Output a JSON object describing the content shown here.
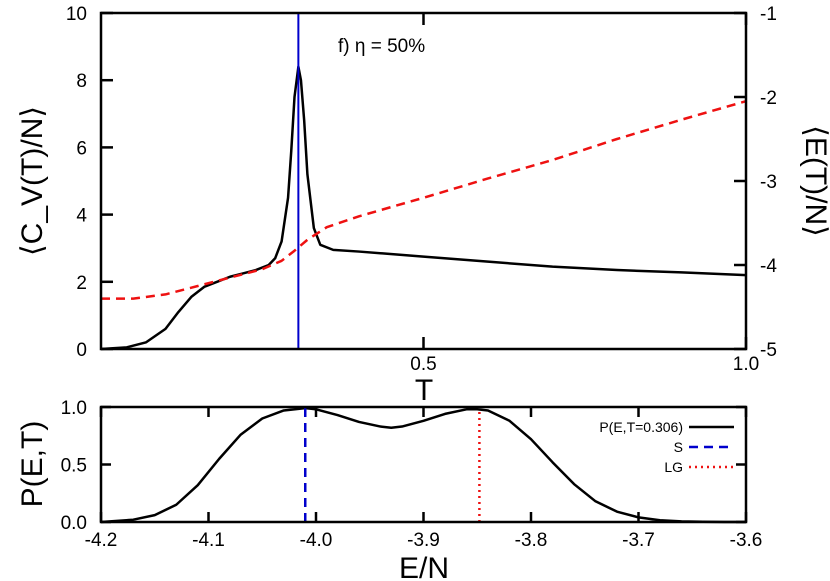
{
  "chart_data": [
    {
      "type": "line",
      "panel": "top",
      "annotation": "f) η = 50%",
      "xlabel": "T",
      "ylabel": "⟨C_V(T)/N⟩",
      "ylabel_right": "⟨E(T)/N⟩",
      "xlim": [
        0.0,
        1.0
      ],
      "ylim": [
        0,
        10
      ],
      "ylim_right": [
        -5,
        -1
      ],
      "xticks": [
        0.5,
        1.0
      ],
      "xtick_labels": [
        "0.5",
        "1.0"
      ],
      "yticks": [
        0,
        2,
        4,
        6,
        8,
        10
      ],
      "ytick_labels": [
        "0",
        "2",
        "4",
        "6",
        "8",
        "10"
      ],
      "yticks_right": [
        -5,
        -4,
        -3,
        -2,
        -1
      ],
      "ytick_labels_right": [
        "-5",
        "-4",
        "-3",
        "-2",
        "-1"
      ],
      "grid": false,
      "vertical_line": {
        "x": 0.306,
        "color": "#0000cc"
      },
      "series": [
        {
          "axis": "left",
          "color": "#000000",
          "style": "solid",
          "x": [
            0.0,
            0.04,
            0.07,
            0.1,
            0.12,
            0.14,
            0.16,
            0.18,
            0.2,
            0.22,
            0.24,
            0.26,
            0.27,
            0.28,
            0.29,
            0.295,
            0.3,
            0.306,
            0.31,
            0.315,
            0.32,
            0.33,
            0.34,
            0.36,
            0.4,
            0.5,
            0.6,
            0.7,
            0.8,
            0.9,
            1.0
          ],
          "y": [
            0.0,
            0.05,
            0.2,
            0.6,
            1.1,
            1.55,
            1.85,
            2.0,
            2.15,
            2.25,
            2.35,
            2.5,
            2.7,
            3.2,
            4.5,
            5.9,
            7.5,
            8.4,
            8.0,
            6.8,
            5.2,
            3.6,
            3.1,
            2.95,
            2.9,
            2.75,
            2.6,
            2.45,
            2.35,
            2.28,
            2.2
          ]
        },
        {
          "axis": "right",
          "color": "#ee1111",
          "style": "dashed",
          "x": [
            0.0,
            0.05,
            0.1,
            0.15,
            0.2,
            0.25,
            0.28,
            0.3,
            0.32,
            0.35,
            0.4,
            0.5,
            0.6,
            0.7,
            0.8,
            0.9,
            1.0
          ],
          "y": [
            -4.4,
            -4.4,
            -4.35,
            -4.25,
            -4.15,
            -4.05,
            -3.95,
            -3.83,
            -3.7,
            -3.55,
            -3.42,
            -3.2,
            -2.97,
            -2.75,
            -2.5,
            -2.27,
            -2.05
          ]
        }
      ]
    },
    {
      "type": "line",
      "panel": "bottom",
      "xlabel": "E/N",
      "ylabel": "P(E,T)",
      "xlim": [
        -4.2,
        -3.6
      ],
      "ylim": [
        0.0,
        1.0
      ],
      "xticks": [
        -4.2,
        -4.1,
        -4.0,
        -3.9,
        -3.8,
        -3.7,
        -3.6
      ],
      "xtick_labels": [
        "-4.2",
        "-4.1",
        "-4.0",
        "-3.9",
        "-3.8",
        "-3.7",
        "-3.6"
      ],
      "yticks": [
        0.0,
        0.5,
        1.0
      ],
      "ytick_labels": [
        "0.0",
        "0.5",
        "1.0"
      ],
      "legend_position": "top-right",
      "series": [
        {
          "name": "P(E,T=0.306)",
          "color": "#000000",
          "style": "solid",
          "x": [
            -4.2,
            -4.17,
            -4.15,
            -4.13,
            -4.11,
            -4.09,
            -4.07,
            -4.05,
            -4.03,
            -4.01,
            -4.0,
            -3.98,
            -3.96,
            -3.94,
            -3.93,
            -3.92,
            -3.9,
            -3.88,
            -3.86,
            -3.85,
            -3.84,
            -3.82,
            -3.8,
            -3.78,
            -3.76,
            -3.74,
            -3.72,
            -3.7,
            -3.68,
            -3.66,
            -3.64,
            -3.62,
            -3.6
          ],
          "y": [
            0.0,
            0.02,
            0.06,
            0.15,
            0.32,
            0.55,
            0.76,
            0.9,
            0.97,
            0.99,
            0.98,
            0.93,
            0.87,
            0.83,
            0.82,
            0.83,
            0.88,
            0.94,
            0.98,
            0.98,
            0.97,
            0.88,
            0.72,
            0.52,
            0.33,
            0.18,
            0.09,
            0.04,
            0.015,
            0.005,
            0.002,
            0.0,
            0.0
          ]
        },
        {
          "name": "S",
          "color": "#0000cc",
          "style": "dashed",
          "x": [
            -4.01,
            -4.01
          ],
          "y": [
            0.0,
            0.99
          ]
        },
        {
          "name": "LG",
          "color": "#ee1111",
          "style": "dotted",
          "x": [
            -3.848,
            -3.848
          ],
          "y": [
            0.0,
            0.98
          ]
        }
      ]
    }
  ]
}
